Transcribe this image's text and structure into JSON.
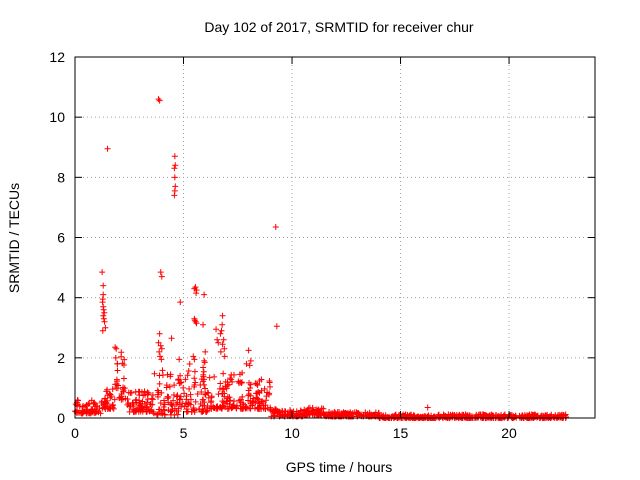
{
  "chart_data": {
    "type": "scatter",
    "title": "Day 102 of 2017, SRMTID for receiver chur",
    "xlabel": "GPS time / hours",
    "ylabel": "SRMTID / TECUs",
    "xlim": [
      0,
      23.96
    ],
    "ylim": [
      0,
      12
    ],
    "x_ticks": [
      0,
      5,
      10,
      15,
      20
    ],
    "y_ticks": [
      0,
      2,
      4,
      6,
      8,
      10,
      12
    ],
    "x_tick_labels": [
      "0",
      "5",
      "10",
      "15",
      "20"
    ],
    "y_tick_labels": [
      "0",
      "2",
      "4",
      "6",
      "8",
      "10",
      "12"
    ],
    "grid": true,
    "marker": "+",
    "color": "#ff0000",
    "background_bands": [
      {
        "x_start": 0.0,
        "x_end": 1.2,
        "low": 0.15,
        "high": 0.6
      },
      {
        "x_start": 1.2,
        "x_end": 1.8,
        "low": 0.3,
        "high": 1.0
      },
      {
        "x_start": 1.8,
        "x_end": 2.3,
        "low": 0.6,
        "high": 2.2
      },
      {
        "x_start": 2.3,
        "x_end": 3.6,
        "low": 0.2,
        "high": 0.9
      },
      {
        "x_start": 3.6,
        "x_end": 4.9,
        "low": 0.1,
        "high": 1.6
      },
      {
        "x_start": 4.9,
        "x_end": 6.2,
        "low": 0.2,
        "high": 1.9
      },
      {
        "x_start": 6.2,
        "x_end": 7.4,
        "low": 0.3,
        "high": 1.5
      },
      {
        "x_start": 7.4,
        "x_end": 9.0,
        "low": 0.3,
        "high": 1.3
      },
      {
        "x_start": 9.0,
        "x_end": 10.5,
        "low": 0.05,
        "high": 0.3
      },
      {
        "x_start": 10.5,
        "x_end": 11.5,
        "low": 0.1,
        "high": 0.35
      },
      {
        "x_start": 11.5,
        "x_end": 14.0,
        "low": 0.05,
        "high": 0.2
      },
      {
        "x_start": 14.0,
        "x_end": 22.7,
        "low": 0.0,
        "high": 0.12
      }
    ],
    "points": [
      {
        "x": 1.25,
        "y": 4.85
      },
      {
        "x": 1.3,
        "y": 4.4
      },
      {
        "x": 1.3,
        "y": 4.1
      },
      {
        "x": 1.28,
        "y": 3.95
      },
      {
        "x": 1.27,
        "y": 3.85
      },
      {
        "x": 1.3,
        "y": 3.7
      },
      {
        "x": 1.32,
        "y": 3.6
      },
      {
        "x": 1.35,
        "y": 3.5
      },
      {
        "x": 1.3,
        "y": 3.4
      },
      {
        "x": 1.33,
        "y": 3.3
      },
      {
        "x": 1.36,
        "y": 3.2
      },
      {
        "x": 1.4,
        "y": 3.0
      },
      {
        "x": 1.28,
        "y": 2.9
      },
      {
        "x": 1.5,
        "y": 8.95
      },
      {
        "x": 1.85,
        "y": 2.35
      },
      {
        "x": 1.9,
        "y": 2.3
      },
      {
        "x": 1.88,
        "y": 2.0
      },
      {
        "x": 1.95,
        "y": 1.8
      },
      {
        "x": 3.85,
        "y": 10.6
      },
      {
        "x": 3.9,
        "y": 10.55
      },
      {
        "x": 3.95,
        "y": 4.85
      },
      {
        "x": 4.0,
        "y": 4.7
      },
      {
        "x": 3.9,
        "y": 2.8
      },
      {
        "x": 3.85,
        "y": 2.5
      },
      {
        "x": 3.95,
        "y": 2.4
      },
      {
        "x": 4.0,
        "y": 2.3
      },
      {
        "x": 3.88,
        "y": 2.2
      },
      {
        "x": 3.92,
        "y": 2.05
      },
      {
        "x": 3.98,
        "y": 1.95
      },
      {
        "x": 4.45,
        "y": 2.65
      },
      {
        "x": 4.6,
        "y": 8.7
      },
      {
        "x": 4.62,
        "y": 8.4
      },
      {
        "x": 4.58,
        "y": 8.3
      },
      {
        "x": 4.6,
        "y": 8.0
      },
      {
        "x": 4.62,
        "y": 7.7
      },
      {
        "x": 4.6,
        "y": 7.55
      },
      {
        "x": 4.58,
        "y": 7.4
      },
      {
        "x": 4.85,
        "y": 3.85
      },
      {
        "x": 4.8,
        "y": 1.95
      },
      {
        "x": 5.5,
        "y": 4.3
      },
      {
        "x": 5.55,
        "y": 4.35
      },
      {
        "x": 5.6,
        "y": 4.25
      },
      {
        "x": 5.58,
        "y": 4.15
      },
      {
        "x": 5.5,
        "y": 3.3
      },
      {
        "x": 5.52,
        "y": 3.25
      },
      {
        "x": 5.56,
        "y": 3.2
      },
      {
        "x": 5.6,
        "y": 3.15
      },
      {
        "x": 5.45,
        "y": 2.05
      },
      {
        "x": 5.5,
        "y": 1.95
      },
      {
        "x": 5.95,
        "y": 4.1
      },
      {
        "x": 5.9,
        "y": 3.1
      },
      {
        "x": 6.0,
        "y": 2.2
      },
      {
        "x": 5.95,
        "y": 1.9
      },
      {
        "x": 6.5,
        "y": 2.95
      },
      {
        "x": 6.55,
        "y": 2.6
      },
      {
        "x": 6.6,
        "y": 2.5
      },
      {
        "x": 6.7,
        "y": 2.8
      },
      {
        "x": 6.8,
        "y": 3.4
      },
      {
        "x": 6.78,
        "y": 3.1
      },
      {
        "x": 6.75,
        "y": 2.9
      },
      {
        "x": 6.85,
        "y": 2.6
      },
      {
        "x": 6.8,
        "y": 2.45
      },
      {
        "x": 6.88,
        "y": 2.3
      },
      {
        "x": 6.72,
        "y": 2.2
      },
      {
        "x": 6.9,
        "y": 2.05
      },
      {
        "x": 7.6,
        "y": 1.45
      },
      {
        "x": 7.7,
        "y": 1.5
      },
      {
        "x": 7.9,
        "y": 1.8
      },
      {
        "x": 8.0,
        "y": 2.25
      },
      {
        "x": 8.1,
        "y": 1.9
      },
      {
        "x": 8.05,
        "y": 1.75
      },
      {
        "x": 9.25,
        "y": 6.35
      },
      {
        "x": 9.3,
        "y": 3.05
      },
      {
        "x": 16.25,
        "y": 0.35
      }
    ]
  }
}
